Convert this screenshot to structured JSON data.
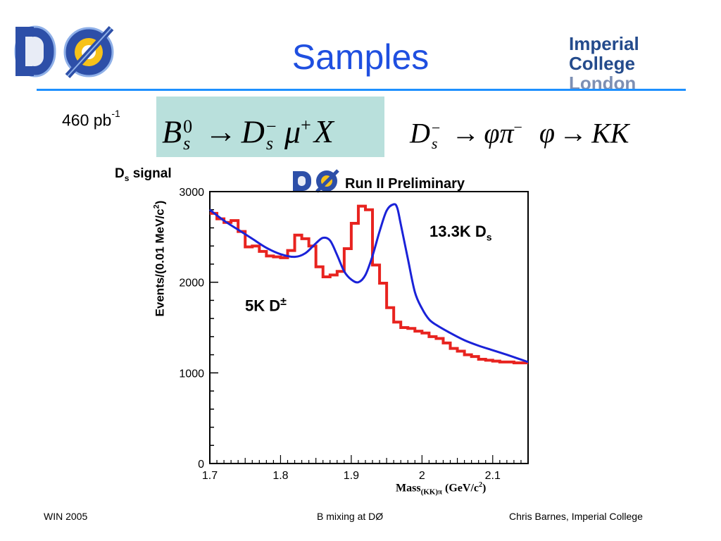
{
  "slide": {
    "title": "Samples",
    "luminosity_value": "460 pb",
    "luminosity_exp": "-1",
    "decay1": {
      "B": "B",
      "B_sub": "s",
      "B_sup": "0",
      "arrow": "→",
      "D": "D",
      "D_sub": "s",
      "D_sup": "−",
      "mu": "μ",
      "mu_sup": "+",
      "X": "X"
    },
    "decay2": {
      "D": "D",
      "D_sub": "s",
      "D_sup": "−",
      "arrow1": "→",
      "phi": "φ",
      "pi": "π",
      "pi_sup": "−",
      "phi2": "φ",
      "arrow2": "→",
      "KK": "KK"
    }
  },
  "logos": {
    "experiment_logo_text": "DØ",
    "college_line1": "Imperial College",
    "college_line2": "London"
  },
  "footer": {
    "left": "WIN 2005",
    "center": "B mixing at DØ",
    "right": "Chris Barnes, Imperial College"
  },
  "chart_data": {
    "type": "line",
    "title": "D",
    "title_sub": "s",
    "title_rest": " signal",
    "header_logo_text": "DØ",
    "header": "Run II Preliminary",
    "ylabel": "Events/(0.01 MeV/c",
    "ylabel_sup": "2",
    "ylabel_end": ")",
    "xlabel": "Mass",
    "xlabel_sub": "(KK)π",
    "xlabel_rest": " (GeV/c",
    "xlabel_sup": "2",
    "xlabel_end": ")",
    "xlim": [
      1.7,
      2.15
    ],
    "ylim": [
      0,
      3000
    ],
    "xticks": [
      "1.7",
      "1.8",
      "1.9",
      "2",
      "2.1"
    ],
    "yticks": [
      "0",
      "1000",
      "2000",
      "3000"
    ],
    "annotations": {
      "ds_count": "13.3K D",
      "ds_sub": "s",
      "dpm_count": "5K D",
      "dpm_sup": "±"
    },
    "series": [
      {
        "kind": "histogram",
        "color": "#e8231f",
        "bin_width": 0.01,
        "bin_edges_start": 1.7,
        "values": [
          2760,
          2700,
          2660,
          2680,
          2560,
          2390,
          2400,
          2340,
          2290,
          2280,
          2270,
          2350,
          2520,
          2480,
          2400,
          2170,
          2060,
          2080,
          2120,
          2370,
          2650,
          2840,
          2800,
          2190,
          1990,
          1720,
          1560,
          1500,
          1490,
          1460,
          1440,
          1400,
          1380,
          1330,
          1270,
          1240,
          1200,
          1180,
          1150,
          1140,
          1130,
          1120,
          1120,
          1110,
          1110
        ]
      },
      {
        "kind": "fit",
        "color": "#1a22d8",
        "x": [
          1.7,
          1.72,
          1.74,
          1.76,
          1.78,
          1.8,
          1.82,
          1.835,
          1.85,
          1.86,
          1.87,
          1.88,
          1.89,
          1.9,
          1.91,
          1.92,
          1.93,
          1.94,
          1.95,
          1.96,
          1.965,
          1.97,
          1.98,
          1.99,
          2.0,
          2.01,
          2.02,
          2.04,
          2.06,
          2.08,
          2.1,
          2.12,
          2.15
        ],
        "y": [
          2800,
          2680,
          2580,
          2480,
          2380,
          2310,
          2280,
          2320,
          2430,
          2490,
          2460,
          2300,
          2120,
          2030,
          2000,
          2080,
          2290,
          2560,
          2790,
          2860,
          2820,
          2640,
          2260,
          1890,
          1710,
          1590,
          1530,
          1440,
          1360,
          1300,
          1250,
          1200,
          1120
        ]
      }
    ]
  }
}
